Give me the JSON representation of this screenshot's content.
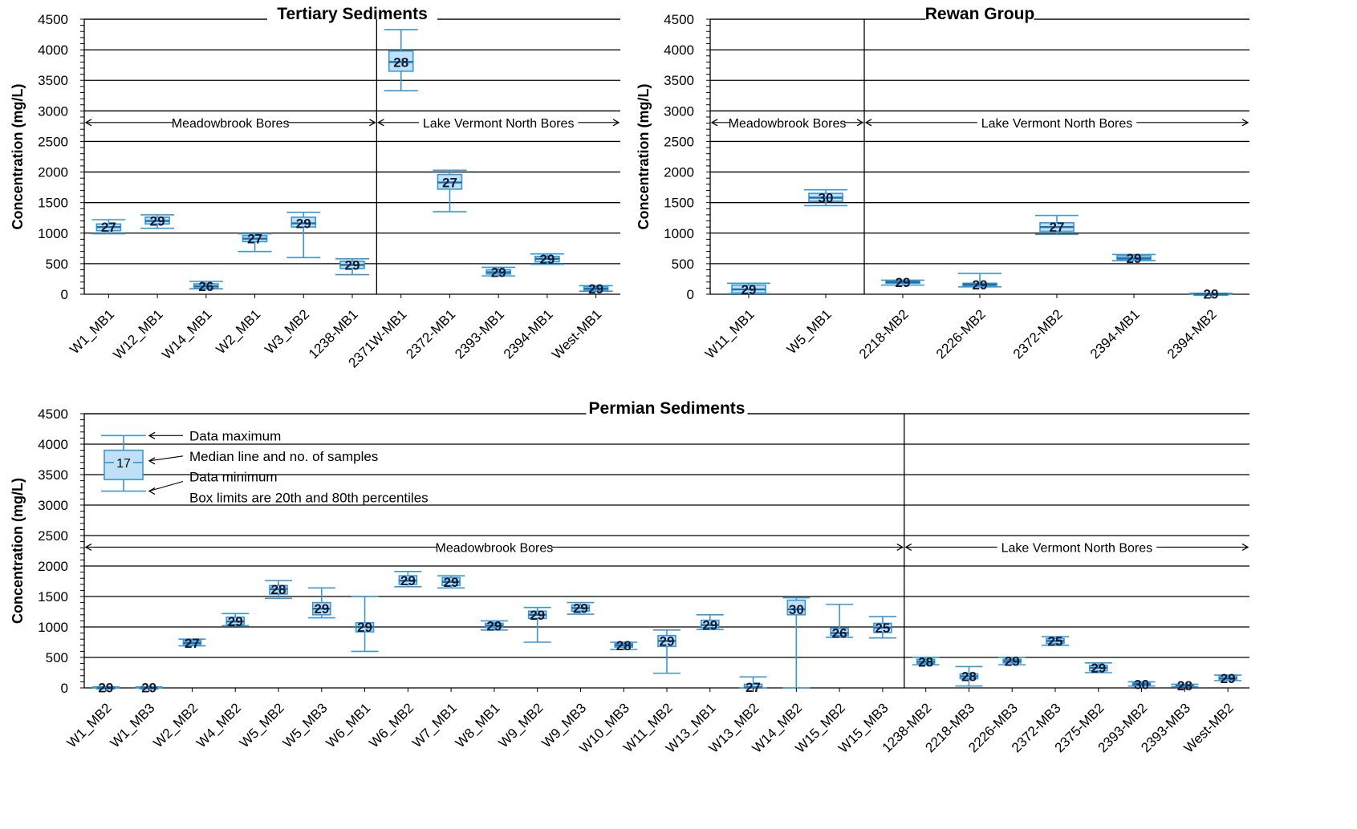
{
  "chart_data": [
    {
      "type": "box",
      "title": "Tertiary Sediments",
      "ylabel": "Concentration (mg/L)",
      "ylim": [
        0,
        4500
      ],
      "yticks": [
        0,
        500,
        1000,
        1500,
        2000,
        2500,
        3000,
        3500,
        4000,
        4500
      ],
      "grid": true,
      "categories": [
        "W1_MB1",
        "W12_MB1",
        "W14_MB1",
        "W2_MB1",
        "W3_MB2",
        "1238-MB1",
        "2371W-MB1",
        "2372-MB1",
        "2393-MB1",
        "2394-MB1",
        "West-MB1"
      ],
      "boxes": [
        {
          "min": 990,
          "q20": 1040,
          "median": 1100,
          "q80": 1150,
          "max": 1220,
          "n": 27
        },
        {
          "min": 1080,
          "q20": 1150,
          "median": 1200,
          "q80": 1260,
          "max": 1300,
          "n": 29
        },
        {
          "min": 90,
          "q20": 100,
          "median": 130,
          "q80": 170,
          "max": 210,
          "n": 26
        },
        {
          "min": 700,
          "q20": 860,
          "median": 910,
          "q80": 960,
          "max": 990,
          "n": 27
        },
        {
          "min": 600,
          "q20": 1100,
          "median": 1160,
          "q80": 1260,
          "max": 1340,
          "n": 29
        },
        {
          "min": 320,
          "q20": 420,
          "median": 480,
          "q80": 540,
          "max": 580,
          "n": 29
        },
        {
          "min": 3330,
          "q20": 3650,
          "median": 3800,
          "q80": 3980,
          "max": 4330,
          "n": 28
        },
        {
          "min": 1350,
          "q20": 1720,
          "median": 1830,
          "q80": 1960,
          "max": 2030,
          "n": 27
        },
        {
          "min": 300,
          "q20": 330,
          "median": 360,
          "q80": 400,
          "max": 440,
          "n": 29
        },
        {
          "min": 490,
          "q20": 530,
          "median": 580,
          "q80": 620,
          "max": 660,
          "n": 29
        },
        {
          "min": 50,
          "q20": 60,
          "median": 90,
          "q80": 120,
          "max": 140,
          "n": 29
        }
      ],
      "separator_after": 6,
      "regions": [
        {
          "label": "Meadowbrook Bores",
          "from": 0,
          "to": 6
        },
        {
          "label": "Lake Vermont North Bores",
          "from": 6,
          "to": 11
        }
      ],
      "region_y": 2810
    },
    {
      "type": "box",
      "title": "Rewan Group",
      "ylabel": "Concentration (mg/L)",
      "ylim": [
        0,
        4500
      ],
      "yticks": [
        0,
        500,
        1000,
        1500,
        2000,
        2500,
        3000,
        3500,
        4000,
        4500
      ],
      "grid": true,
      "categories": [
        "W11_MB1",
        "W5_MB1",
        "2218-MB2",
        "2226-MB2",
        "2372-MB2",
        "2394-MB1",
        "2394-MB2"
      ],
      "boxes": [
        {
          "min": 10,
          "q20": 20,
          "median": 80,
          "q80": 150,
          "max": 180,
          "n": 29
        },
        {
          "min": 1450,
          "q20": 1520,
          "median": 1580,
          "q80": 1650,
          "max": 1710,
          "n": 30
        },
        {
          "min": 150,
          "q20": 180,
          "median": 200,
          "q80": 220,
          "max": 230,
          "n": 29
        },
        {
          "min": 120,
          "q20": 140,
          "median": 160,
          "q80": 180,
          "max": 340,
          "n": 29
        },
        {
          "min": 980,
          "q20": 1030,
          "median": 1100,
          "q80": 1170,
          "max": 1290,
          "n": 27
        },
        {
          "min": 550,
          "q20": 570,
          "median": 590,
          "q80": 630,
          "max": 650,
          "n": 29
        },
        {
          "min": 0,
          "q20": 0,
          "median": 5,
          "q80": 10,
          "max": 15,
          "n": 29
        }
      ],
      "separator_after": 2,
      "regions": [
        {
          "label": "Meadowbrook Bores",
          "from": 0,
          "to": 2
        },
        {
          "label": "Lake Vermont North Bores",
          "from": 2,
          "to": 7
        }
      ],
      "region_y": 2810
    },
    {
      "type": "box",
      "title": "Permian Sediments",
      "ylabel": "Concentration (mg/L)",
      "ylim": [
        0,
        4500
      ],
      "yticks": [
        0,
        500,
        1000,
        1500,
        2000,
        2500,
        3000,
        3500,
        4000,
        4500
      ],
      "grid": true,
      "categories": [
        "W1_MB2",
        "W1_MB3",
        "W2_MB2",
        "W4_MB2",
        "W5_MB2",
        "W5_MB3",
        "W6_MB1",
        "W6_MB2",
        "W7_MB1",
        "W8_MB1",
        "W9_MB2",
        "W9_MB3",
        "W10_MB3",
        "W11_MB2",
        "W13_MB1",
        "W13_MB2",
        "W14_MB2",
        "W15_MB2",
        "W15_MB3",
        "1238-MB2",
        "2218-MB3",
        "2226-MB3",
        "2372-MB3",
        "2375-MB2",
        "2393-MB2",
        "2393-MB3",
        "West-MB2"
      ],
      "boxes": [
        {
          "min": 0,
          "q20": 0,
          "median": 5,
          "q80": 10,
          "max": 15,
          "n": 29
        },
        {
          "min": 0,
          "q20": 0,
          "median": 5,
          "q80": 10,
          "max": 15,
          "n": 29
        },
        {
          "min": 690,
          "q20": 710,
          "median": 740,
          "q80": 780,
          "max": 800,
          "n": 27
        },
        {
          "min": 1020,
          "q20": 1040,
          "median": 1090,
          "q80": 1160,
          "max": 1220,
          "n": 29
        },
        {
          "min": 1470,
          "q20": 1540,
          "median": 1620,
          "q80": 1680,
          "max": 1760,
          "n": 28
        },
        {
          "min": 1150,
          "q20": 1200,
          "median": 1300,
          "q80": 1400,
          "max": 1640,
          "n": 29
        },
        {
          "min": 600,
          "q20": 920,
          "median": 1000,
          "q80": 1070,
          "max": 1500,
          "n": 29
        },
        {
          "min": 1660,
          "q20": 1700,
          "median": 1760,
          "q80": 1840,
          "max": 1910,
          "n": 29
        },
        {
          "min": 1640,
          "q20": 1680,
          "median": 1740,
          "q80": 1810,
          "max": 1840,
          "n": 29
        },
        {
          "min": 950,
          "q20": 990,
          "median": 1020,
          "q80": 1060,
          "max": 1100,
          "n": 29
        },
        {
          "min": 750,
          "q20": 1140,
          "median": 1200,
          "q80": 1260,
          "max": 1320,
          "n": 29
        },
        {
          "min": 1210,
          "q20": 1260,
          "median": 1310,
          "q80": 1360,
          "max": 1400,
          "n": 29
        },
        {
          "min": 630,
          "q20": 670,
          "median": 700,
          "q80": 730,
          "max": 750,
          "n": 28
        },
        {
          "min": 240,
          "q20": 680,
          "median": 770,
          "q80": 860,
          "max": 950,
          "n": 29
        },
        {
          "min": 960,
          "q20": 990,
          "median": 1030,
          "q80": 1110,
          "max": 1200,
          "n": 29
        },
        {
          "min": 0,
          "q20": 0,
          "median": 10,
          "q80": 60,
          "max": 180,
          "n": 27
        },
        {
          "min": 0,
          "q20": 1200,
          "median": 1290,
          "q80": 1440,
          "max": 1480,
          "n": 30
        },
        {
          "min": 830,
          "q20": 860,
          "median": 900,
          "q80": 980,
          "max": 1370,
          "n": 26
        },
        {
          "min": 820,
          "q20": 910,
          "median": 990,
          "q80": 1060,
          "max": 1170,
          "n": 25
        },
        {
          "min": 380,
          "q20": 400,
          "median": 430,
          "q80": 470,
          "max": 500,
          "n": 28
        },
        {
          "min": 30,
          "q20": 150,
          "median": 190,
          "q80": 230,
          "max": 350,
          "n": 28
        },
        {
          "min": 380,
          "q20": 410,
          "median": 440,
          "q80": 470,
          "max": 500,
          "n": 29
        },
        {
          "min": 700,
          "q20": 730,
          "median": 770,
          "q80": 810,
          "max": 840,
          "n": 25
        },
        {
          "min": 250,
          "q20": 280,
          "median": 330,
          "q80": 370,
          "max": 410,
          "n": 29
        },
        {
          "min": 30,
          "q20": 40,
          "median": 60,
          "q80": 80,
          "max": 100,
          "n": 30
        },
        {
          "min": 20,
          "q20": 30,
          "median": 40,
          "q80": 50,
          "max": 60,
          "n": 28
        },
        {
          "min": 120,
          "q20": 140,
          "median": 160,
          "q80": 200,
          "max": 210,
          "n": 29
        }
      ],
      "separator_after": 19,
      "regions": [
        {
          "label": "Meadowbrook Bores",
          "from": 0,
          "to": 19
        },
        {
          "label": "Lake Vermont North Bores",
          "from": 19,
          "to": 27
        }
      ],
      "region_y": 2310,
      "legend_box": {
        "min": 3230,
        "q20": 3420,
        "median": 3700,
        "q80": 3900,
        "max": 4140,
        "n": 17
      },
      "legend_lines": [
        "Data maximum",
        "Median line and no. of samples",
        "Data minimum",
        "Box limits are 20th and 80th percentiles"
      ]
    }
  ]
}
